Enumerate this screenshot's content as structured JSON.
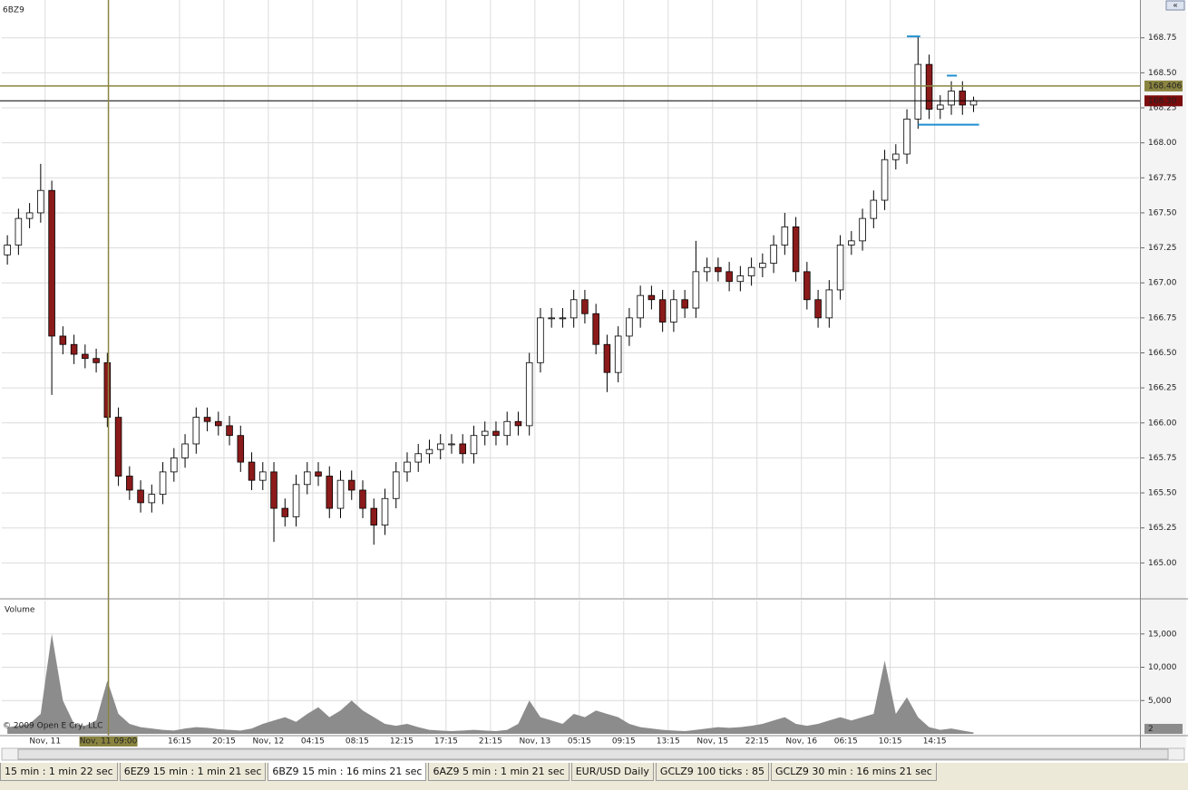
{
  "chart_data": [
    {
      "type": "candlestick",
      "title": "6BZ9",
      "open": [
        167.2,
        167.27,
        167.46,
        167.5,
        167.66,
        166.62,
        166.56,
        166.49,
        166.46,
        166.43,
        166.04,
        165.62,
        165.52,
        165.43,
        165.49,
        165.65,
        165.75,
        165.85,
        166.04,
        166.01,
        165.98,
        165.91,
        165.72,
        165.59,
        165.65,
        165.39,
        165.33,
        165.56,
        165.65,
        165.62,
        165.39,
        165.59,
        165.52,
        165.39,
        165.27,
        165.46,
        165.65,
        165.72,
        165.78,
        165.81,
        165.85,
        165.85,
        165.78,
        165.91,
        165.94,
        165.91,
        166.01,
        165.98,
        166.43,
        166.75,
        166.75,
        166.75,
        166.88,
        166.78,
        166.56,
        166.36,
        166.62,
        166.75,
        166.91,
        166.88,
        166.72,
        166.88,
        166.82,
        167.08,
        167.11,
        167.08,
        167.01,
        167.05,
        167.11,
        167.14,
        167.27,
        167.4,
        167.08,
        166.88,
        166.75,
        166.95,
        167.27,
        167.3,
        167.46,
        167.59,
        167.88,
        167.92,
        168.17,
        168.56,
        168.24,
        168.27,
        168.37,
        168.27
      ],
      "high": [
        167.34,
        167.53,
        167.57,
        167.85,
        167.73,
        166.69,
        166.63,
        166.56,
        166.53,
        166.5,
        166.11,
        165.69,
        165.59,
        165.56,
        165.72,
        165.82,
        165.92,
        166.11,
        166.11,
        166.08,
        166.05,
        165.98,
        165.79,
        165.72,
        165.72,
        165.46,
        165.63,
        165.72,
        165.72,
        165.69,
        165.66,
        165.66,
        165.59,
        165.46,
        165.53,
        165.72,
        165.79,
        165.85,
        165.88,
        165.92,
        165.92,
        165.92,
        165.98,
        166.01,
        166.01,
        166.08,
        166.08,
        166.5,
        166.82,
        166.82,
        166.82,
        166.95,
        166.95,
        166.85,
        166.63,
        166.69,
        166.82,
        166.98,
        166.98,
        166.95,
        166.95,
        166.95,
        167.3,
        167.18,
        167.18,
        167.15,
        167.12,
        167.18,
        167.21,
        167.34,
        167.5,
        167.47,
        167.15,
        166.95,
        167.02,
        167.34,
        167.37,
        167.53,
        167.66,
        167.95,
        167.99,
        168.24,
        168.76,
        168.63,
        168.34,
        168.44,
        168.44,
        168.33
      ],
      "low": [
        167.13,
        167.2,
        167.39,
        167.43,
        166.2,
        166.49,
        166.42,
        166.39,
        166.36,
        165.97,
        165.55,
        165.45,
        165.36,
        165.36,
        165.42,
        165.58,
        165.68,
        165.78,
        165.94,
        165.91,
        165.84,
        165.65,
        165.52,
        165.52,
        165.15,
        165.26,
        165.26,
        165.49,
        165.55,
        165.32,
        165.32,
        165.45,
        165.32,
        165.13,
        165.2,
        165.39,
        165.58,
        165.65,
        165.71,
        165.74,
        165.78,
        165.71,
        165.71,
        165.84,
        165.84,
        165.84,
        165.91,
        165.91,
        166.36,
        166.68,
        166.68,
        166.68,
        166.71,
        166.49,
        166.22,
        166.29,
        166.55,
        166.68,
        166.81,
        166.65,
        166.65,
        166.75,
        166.75,
        167.01,
        167.01,
        166.94,
        166.94,
        166.98,
        167.04,
        167.07,
        167.2,
        167.01,
        166.81,
        166.68,
        166.68,
        166.88,
        167.2,
        167.23,
        167.39,
        167.52,
        167.81,
        167.85,
        168.1,
        168.17,
        168.17,
        168.2,
        168.2,
        168.22
      ],
      "close": [
        167.27,
        167.46,
        167.5,
        167.66,
        166.62,
        166.56,
        166.49,
        166.46,
        166.43,
        166.04,
        165.62,
        165.52,
        165.43,
        165.49,
        165.65,
        165.75,
        165.85,
        166.04,
        166.01,
        165.98,
        165.91,
        165.72,
        165.59,
        165.65,
        165.39,
        165.33,
        165.56,
        165.65,
        165.62,
        165.39,
        165.59,
        165.52,
        165.39,
        165.27,
        165.46,
        165.65,
        165.72,
        165.78,
        165.81,
        165.85,
        165.85,
        165.78,
        165.91,
        165.94,
        165.91,
        166.01,
        165.98,
        166.43,
        166.75,
        166.75,
        166.75,
        166.88,
        166.78,
        166.56,
        166.36,
        166.62,
        166.75,
        166.91,
        166.88,
        166.72,
        166.88,
        166.82,
        167.08,
        167.11,
        167.08,
        167.01,
        167.05,
        167.11,
        167.14,
        167.27,
        167.4,
        167.08,
        166.88,
        166.75,
        166.95,
        167.27,
        167.3,
        167.46,
        167.59,
        167.88,
        167.92,
        168.17,
        168.56,
        168.24,
        168.27,
        168.37,
        168.27,
        168.3
      ],
      "up_color": "#ffffff",
      "down_color": "#8b1a1a",
      "ylim": [
        164.75,
        169.02
      ],
      "yticks": [
        {
          "value": 165,
          "label": "165.00"
        },
        {
          "value": 165.25,
          "label": "165.25"
        },
        {
          "value": 165.5,
          "label": "165.50"
        },
        {
          "value": 165.75,
          "label": "165.75"
        },
        {
          "value": 166,
          "label": "166.00"
        },
        {
          "value": 166.25,
          "label": "166.25"
        },
        {
          "value": 166.5,
          "label": "166.50"
        },
        {
          "value": 166.75,
          "label": "166.75"
        },
        {
          "value": 167,
          "label": "167.00"
        },
        {
          "value": 167.25,
          "label": "167.25"
        },
        {
          "value": 167.5,
          "label": "167.50"
        },
        {
          "value": 167.75,
          "label": "167.75"
        },
        {
          "value": 168,
          "label": "168.00"
        },
        {
          "value": 168.25,
          "label": "168.25"
        },
        {
          "value": 168.5,
          "label": "168.50"
        },
        {
          "value": 168.75,
          "label": "168.75"
        }
      ],
      "grid": true,
      "cursor_price": 168.406,
      "cursor_color": "#8a8440",
      "last_price": {
        "value": 168.3,
        "label": "168.30"
      },
      "drawn_levels": [
        168.76,
        168.48,
        168.13
      ],
      "drawn_color": "#1e8fd0"
    },
    {
      "type": "area",
      "title": "Volume",
      "values": [
        1000,
        1200,
        1500,
        3000,
        15000,
        5000,
        1500,
        1200,
        2000,
        8000,
        3000,
        1500,
        1000,
        800,
        600,
        500,
        800,
        1000,
        900,
        700,
        600,
        500,
        800,
        1500,
        2000,
        2500,
        1800,
        3000,
        4000,
        2500,
        3500,
        5000,
        3500,
        2500,
        1500,
        1200,
        1500,
        1000,
        600,
        500,
        400,
        500,
        600,
        500,
        400,
        600,
        1500,
        5000,
        2500,
        2000,
        1500,
        3000,
        2500,
        3500,
        3000,
        2500,
        1500,
        1000,
        800,
        600,
        500,
        400,
        600,
        800,
        1000,
        900,
        1000,
        1200,
        1500,
        2000,
        2500,
        1500,
        1200,
        1500,
        2000,
        2500,
        2000,
        2500,
        3000,
        11000,
        3000,
        5500,
        2500,
        1000,
        600,
        800,
        500,
        200
      ],
      "color": "#8c8c8c",
      "ylim": [
        0,
        20000
      ],
      "yticks": [
        {
          "value": 5000,
          "label": "5,000"
        },
        {
          "value": 10000,
          "label": "10,000"
        },
        {
          "value": 15000,
          "label": "15,000"
        }
      ],
      "current_value": 2,
      "xlim": [
        0,
        102.4
      ],
      "xticks": [
        {
          "value": 3.9,
          "label": "Nov, 11"
        },
        {
          "value": 16,
          "label": "16:15"
        },
        {
          "value": 20,
          "label": "20:15"
        },
        {
          "value": 24,
          "label": "Nov, 12"
        },
        {
          "value": 28,
          "label": "04:15"
        },
        {
          "value": 32,
          "label": "08:15"
        },
        {
          "value": 36,
          "label": "12:15"
        },
        {
          "value": 40,
          "label": "17:15"
        },
        {
          "value": 44,
          "label": "21:15"
        },
        {
          "value": 48,
          "label": "Nov, 13"
        },
        {
          "value": 52,
          "label": "05:15"
        },
        {
          "value": 56,
          "label": "09:15"
        },
        {
          "value": 60,
          "label": "13:15"
        },
        {
          "value": 64,
          "label": "Nov, 15"
        },
        {
          "value": 68,
          "label": "22:15"
        },
        {
          "value": 72,
          "label": "Nov, 16"
        },
        {
          "value": 76,
          "label": "06:15"
        },
        {
          "value": 80,
          "label": "10:15"
        },
        {
          "value": 84,
          "label": "14:15"
        }
      ],
      "cursor_x": {
        "value": 9.6,
        "label": "Nov, 11 09:00"
      }
    }
  ],
  "copyright": "© 2009 Open E Cry, LLC",
  "tabs": [
    "15 min : 1 min 22 sec",
    "6EZ9 15 min : 1 min 21 sec",
    "6BZ9 15 min : 16 mins 21 sec",
    "6AZ9 5 min : 1 min 21 sec",
    "EUR/USD Daily",
    "GCLZ9 100 ticks : 85",
    "GCLZ9 30 min : 16 mins 21 sec"
  ],
  "active_tab": 2
}
